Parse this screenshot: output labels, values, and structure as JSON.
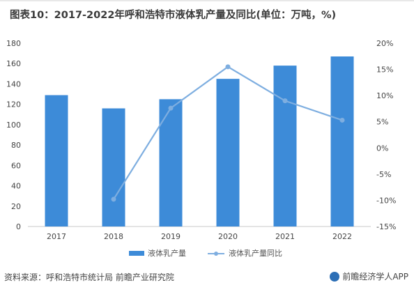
{
  "title": "图表10：2017-2022年呼和浩特市液体乳产量及同比(单位：万吨，%)",
  "source": "资料来源：呼和浩特市统计局 前瞻产业研究院",
  "brand": "前瞻经济学人APP",
  "colors": {
    "bar": "#3d8bd8",
    "line": "#7eaee0",
    "axis": "#c8c8c8"
  },
  "chart_data": {
    "type": "bar",
    "categories": [
      "2017",
      "2018",
      "2019",
      "2020",
      "2021",
      "2022"
    ],
    "series": [
      {
        "name": "液体乳产量",
        "type": "bar",
        "axis": "left",
        "values": [
          129,
          116,
          125,
          145,
          158,
          167
        ]
      },
      {
        "name": "液体乳产量同比",
        "type": "line",
        "axis": "right",
        "values": [
          null,
          -9.8,
          7.6,
          15.5,
          9.0,
          5.3
        ]
      }
    ],
    "yLeft": {
      "min": 0,
      "max": 180,
      "ticks": [
        "0",
        "20",
        "40",
        "60",
        "80",
        "100",
        "120",
        "140",
        "160",
        "180"
      ]
    },
    "yRight": {
      "min": -15,
      "max": 20,
      "ticks": [
        "-15%",
        "-10%",
        "-5%",
        "0%",
        "5%",
        "10%",
        "15%",
        "20%"
      ]
    },
    "legend_position": "bottom"
  }
}
